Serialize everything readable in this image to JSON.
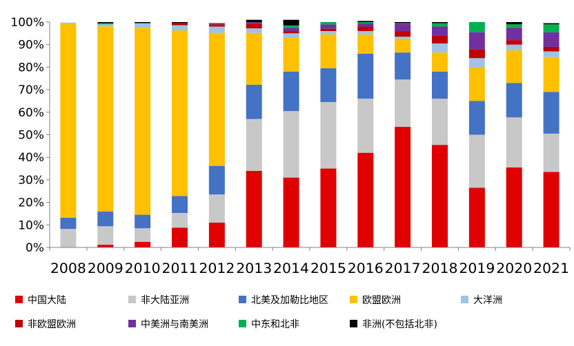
{
  "chart_data": {
    "type": "bar",
    "stacked": true,
    "percent": true,
    "categories": [
      "2008",
      "2009",
      "2010",
      "2011",
      "2012",
      "2013",
      "2014",
      "2015",
      "2016",
      "2017",
      "2018",
      "2019",
      "2020",
      "2021"
    ],
    "ylim": [
      0,
      100
    ],
    "yticks": [
      "0%",
      "10%",
      "20%",
      "30%",
      "40%",
      "50%",
      "60%",
      "70%",
      "80%",
      "90%",
      "100%"
    ],
    "grid": false,
    "legend_position": "bottom",
    "series": [
      {
        "name": "中国大陆",
        "color": "#e00000",
        "values": [
          0,
          1.2,
          2.5,
          8.8,
          11,
          34,
          31,
          35,
          42,
          53.5,
          45.5,
          26.5,
          35.5,
          33.5
        ]
      },
      {
        "name": "非大陆亚洲",
        "color": "#c8c8c8",
        "values": [
          8.2,
          8.2,
          6,
          6.5,
          12.5,
          23,
          29.5,
          29.5,
          24,
          21,
          20.5,
          23.5,
          22.2,
          17
        ]
      },
      {
        "name": "北美及加勒比地区",
        "color": "#4472c4",
        "values": [
          5,
          6.5,
          6,
          7.5,
          12.7,
          15.2,
          17.5,
          15,
          20,
          12,
          12,
          15,
          15.3,
          18.5
        ]
      },
      {
        "name": "欧盟欧洲",
        "color": "#ffc000",
        "values": [
          86,
          82.2,
          83,
          73.5,
          59,
          23,
          15,
          15,
          8.5,
          6,
          8.5,
          15,
          14.5,
          15.5
        ]
      },
      {
        "name": "大洋洲",
        "color": "#9dc3e6",
        "values": [
          0.6,
          0.9,
          2,
          2.3,
          2.8,
          2,
          2,
          1.5,
          1.5,
          1,
          4,
          4,
          2.5,
          2.5
        ]
      },
      {
        "name": "非欧盟欧洲",
        "color": "#c00000",
        "values": [
          0,
          0,
          0,
          1,
          1,
          2,
          1,
          1,
          2,
          2.5,
          3.5,
          4,
          2,
          2
        ]
      },
      {
        "name": "中美洲与南美洲",
        "color": "#7030a0",
        "values": [
          0,
          0,
          0,
          0,
          0.3,
          0.8,
          1.5,
          2,
          1.5,
          3.3,
          4,
          7.5,
          5.5,
          6.5
        ]
      },
      {
        "name": "中东和北非",
        "color": "#00b050",
        "values": [
          0,
          0.5,
          0,
          0,
          0,
          0,
          1,
          1,
          0.5,
          0.2,
          1.5,
          4.5,
          1.5,
          3.5
        ]
      },
      {
        "name": "非洲(不包括北非)",
        "color": "#000000",
        "values": [
          0,
          0.5,
          0.5,
          0.4,
          0.2,
          1,
          2.5,
          0,
          0.5,
          0.5,
          0.5,
          0,
          1,
          0.5
        ]
      }
    ]
  }
}
